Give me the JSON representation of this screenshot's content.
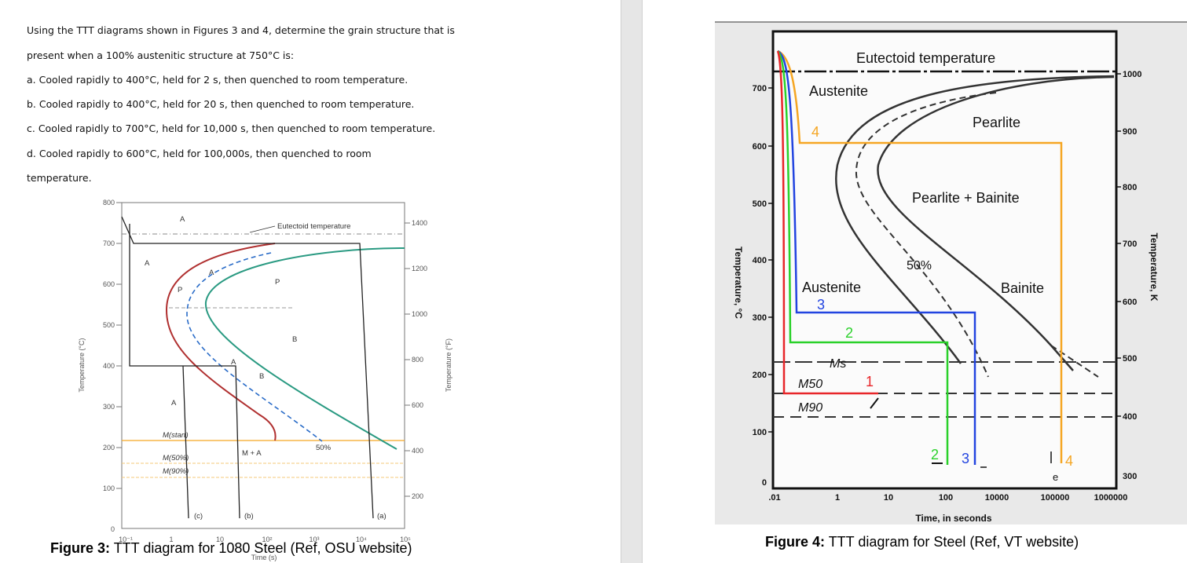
{
  "question": {
    "lines": [
      "Using the TTT diagrams shown in Figures 3 and 4, determine the grain structure that is",
      "present when a 100% austenitic structure at 750°C is:",
      "a. Cooled rapidly to 400°C, held for 2 s, then quenched to room temperature.",
      "b. Cooled rapidly to 400°C, held for 20 s, then quenched to room temperature.",
      "c. Cooled rapidly to 700°C, held for 10,000 s, then quenched to room temperature.",
      "d. Cooled rapidly to 600°C, held for 100,000s, then quenched to room",
      "temperature."
    ]
  },
  "figure3": {
    "caption_bold": "Figure 3:",
    "caption_rest": " TTT diagram for 1080 Steel (Ref, OSU website)",
    "ylabel_left": "Temperature (°C)",
    "ylabel_right": "Temperature (°F)",
    "xlabel": "Time (s)",
    "yticks_c": [
      "800",
      "700",
      "600",
      "500",
      "400",
      "300",
      "200",
      "100",
      "0"
    ],
    "yticks_f": [
      "1400",
      "1200",
      "1000",
      "800",
      "600",
      "400",
      "200"
    ],
    "xticks": [
      "10⁻¹",
      "1",
      "10",
      "10²",
      "10³",
      "10⁴",
      "10⁵"
    ],
    "labels": {
      "eutectoid": "Eutectoid temperature",
      "A_top": "A",
      "A_left": "A",
      "A_mid": "A",
      "P": "P",
      "B": "B",
      "A_curve1": "A",
      "A_curve2": "A",
      "P_curve": "P",
      "B_curve": "B",
      "fifty": "50%",
      "ma": "M + A",
      "mstart": "M(start)",
      "m50": "M(50%)",
      "m90": "M(90%)",
      "c": "(c)",
      "b": "(b)",
      "a": "(a)"
    }
  },
  "figure4": {
    "caption_bold": "Figure 4:",
    "caption_rest": " TTT diagram for Steel (Ref, VT website)",
    "xlabel": "Time, in seconds",
    "ylabel_left": "Temperature, °C",
    "ylabel_right": "Temperature, K",
    "yticks_c": [
      "700",
      "600",
      "500",
      "400",
      "300",
      "200",
      "100",
      "0"
    ],
    "yticks_k": [
      "1000",
      "900",
      "800",
      "700",
      "600",
      "500",
      "400",
      "300"
    ],
    "xticks": [
      ".01",
      "1",
      "10",
      "100",
      "10000",
      "100000",
      "1000000"
    ],
    "labels": {
      "eutectoid": "Eutectoid temperature",
      "austenite_top": "Austenite",
      "pearlite": "Pearlite",
      "pearlite_bainite": "Pearlite + Bainite",
      "fifty": "50%",
      "austenite_mid": "Austenite",
      "bainite": "Bainite",
      "ms": "Ms",
      "m50": "M50",
      "m90": "M90",
      "e": "e",
      "path1": "1",
      "path2": "2",
      "path3": "3",
      "path4": "4"
    },
    "colors": {
      "path1": "#e8262a",
      "path2": "#2ad12a",
      "path3": "#2244e0",
      "path4": "#f5a623"
    }
  }
}
